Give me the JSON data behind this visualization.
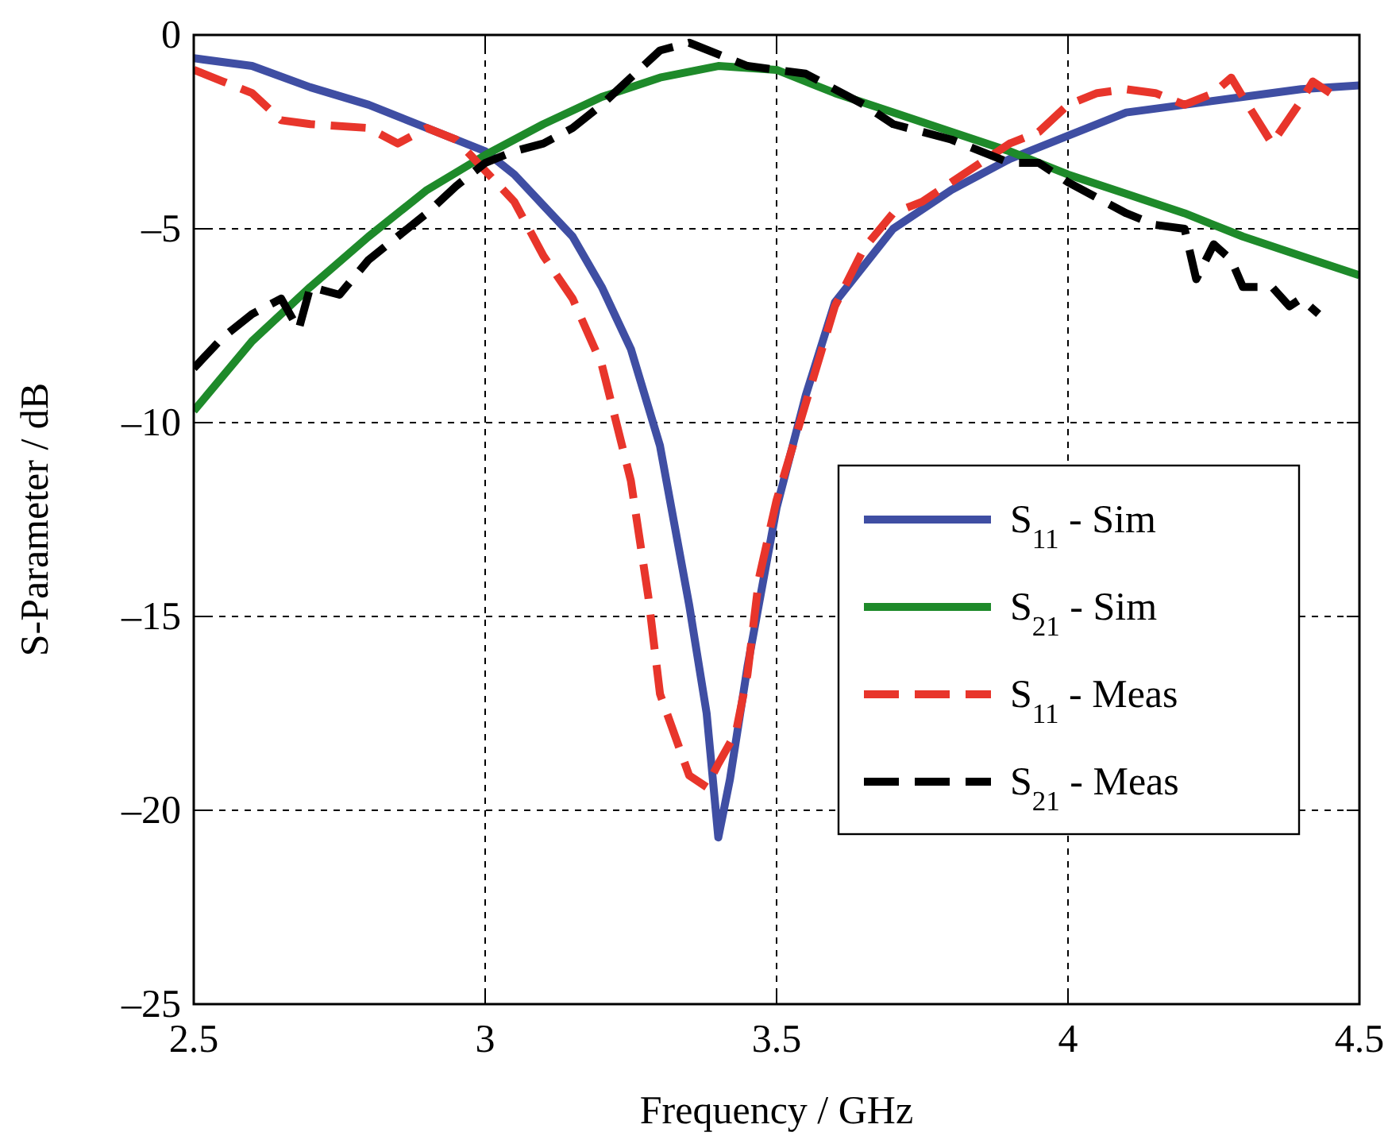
{
  "chart_data": {
    "type": "line",
    "xlabel": "Frequency / GHz",
    "ylabel": "S-Parameter / dB",
    "xlim": [
      2.5,
      4.5
    ],
    "xticks": [
      2.5,
      3,
      3.5,
      4,
      4.5
    ],
    "ylim": [
      -25,
      0
    ],
    "yticks": [
      {
        "value": -25,
        "label": "–25"
      },
      {
        "value": -20,
        "label": "–20"
      },
      {
        "value": -15,
        "label": "–15"
      },
      {
        "value": -10,
        "label": "–10"
      },
      {
        "value": -5,
        "label": "–5"
      },
      0
    ],
    "grid": true,
    "legend": "right",
    "marker": "none",
    "series": [
      {
        "name": "S$_{11}$ - Sim",
        "color": "#3f4ea3",
        "line_style": "solid",
        "x": [
          2.5,
          2.6,
          2.7,
          2.8,
          2.9,
          3.0,
          3.05,
          3.1,
          3.15,
          3.2,
          3.25,
          3.3,
          3.35,
          3.38,
          3.4,
          3.42,
          3.45,
          3.5,
          3.55,
          3.6,
          3.7,
          3.8,
          3.9,
          4.0,
          4.1,
          4.2,
          4.3,
          4.4,
          4.5
        ],
        "values": [
          -0.6,
          -0.8,
          -1.35,
          -1.8,
          -2.4,
          -3.0,
          -3.6,
          -4.4,
          -5.2,
          -6.5,
          -8.1,
          -10.6,
          -14.7,
          -17.5,
          -20.7,
          -19.2,
          -16.3,
          -12.2,
          -9.3,
          -6.9,
          -5.0,
          -4.0,
          -3.2,
          -2.6,
          -2.0,
          -1.8,
          -1.6,
          -1.4,
          -1.3
        ]
      },
      {
        "name": "S$_{21}$ - Sim",
        "color": "#1e8a2a",
        "line_style": "solid",
        "x": [
          2.5,
          2.6,
          2.7,
          2.8,
          2.9,
          3.0,
          3.1,
          3.2,
          3.3,
          3.4,
          3.5,
          3.6,
          3.7,
          3.8,
          3.9,
          4.0,
          4.1,
          4.2,
          4.3,
          4.4,
          4.5
        ],
        "values": [
          -9.7,
          -7.9,
          -6.5,
          -5.2,
          -4.0,
          -3.1,
          -2.3,
          -1.6,
          -1.1,
          -0.8,
          -0.9,
          -1.5,
          -2.0,
          -2.5,
          -3.0,
          -3.6,
          -4.1,
          -4.6,
          -5.2,
          -5.7,
          -6.2
        ]
      },
      {
        "name": "S$_{11}$ - Meas",
        "color": "#e8352b",
        "line_style": "dashed",
        "x": [
          2.5,
          2.55,
          2.6,
          2.65,
          2.7,
          2.8,
          2.85,
          2.9,
          2.95,
          3.0,
          3.05,
          3.1,
          3.15,
          3.2,
          3.25,
          3.28,
          3.3,
          3.35,
          3.38,
          3.4,
          3.43,
          3.45,
          3.47,
          3.5,
          3.55,
          3.6,
          3.65,
          3.7,
          3.75,
          3.8,
          3.85,
          3.9,
          3.95,
          4.0,
          4.05,
          4.1,
          4.15,
          4.2,
          4.25,
          4.28,
          4.3,
          4.35,
          4.4,
          4.42,
          4.45
        ],
        "values": [
          -0.9,
          -1.2,
          -1.5,
          -2.2,
          -2.3,
          -2.4,
          -2.8,
          -2.4,
          -2.7,
          -3.5,
          -4.3,
          -5.7,
          -6.8,
          -8.5,
          -11.5,
          -14.5,
          -17,
          -19.1,
          -19.4,
          -18.8,
          -18.0,
          -16.5,
          -14,
          -12,
          -9.5,
          -7,
          -5.5,
          -4.6,
          -4.3,
          -3.8,
          -3.3,
          -2.8,
          -2.5,
          -1.8,
          -1.5,
          -1.4,
          -1.5,
          -1.8,
          -1.5,
          -1.1,
          -1.6,
          -2.8,
          -1.7,
          -1.2,
          -1.5
        ]
      },
      {
        "name": "S$_{21}$ - Meas",
        "color": "#000000",
        "line_style": "dashed",
        "x": [
          2.5,
          2.55,
          2.6,
          2.65,
          2.68,
          2.7,
          2.75,
          2.8,
          2.85,
          2.9,
          2.95,
          3.0,
          3.05,
          3.1,
          3.15,
          3.2,
          3.25,
          3.3,
          3.35,
          3.4,
          3.45,
          3.5,
          3.55,
          3.6,
          3.65,
          3.7,
          3.75,
          3.8,
          3.85,
          3.9,
          3.95,
          4.0,
          4.05,
          4.1,
          4.15,
          4.2,
          4.22,
          4.25,
          4.28,
          4.3,
          4.35,
          4.38,
          4.4,
          4.43
        ],
        "values": [
          -8.6,
          -7.8,
          -7.2,
          -6.8,
          -7.6,
          -6.5,
          -6.7,
          -5.8,
          -5.2,
          -4.6,
          -3.9,
          -3.3,
          -3.0,
          -2.8,
          -2.4,
          -1.8,
          -1.1,
          -0.4,
          -0.2,
          -0.5,
          -0.8,
          -0.9,
          -1.0,
          -1.4,
          -1.8,
          -2.3,
          -2.5,
          -2.7,
          -3.0,
          -3.3,
          -3.3,
          -3.8,
          -4.2,
          -4.6,
          -4.9,
          -5.0,
          -6.3,
          -5.4,
          -5.8,
          -6.5,
          -6.5,
          -7.0,
          -6.8,
          -7.2
        ]
      }
    ]
  }
}
